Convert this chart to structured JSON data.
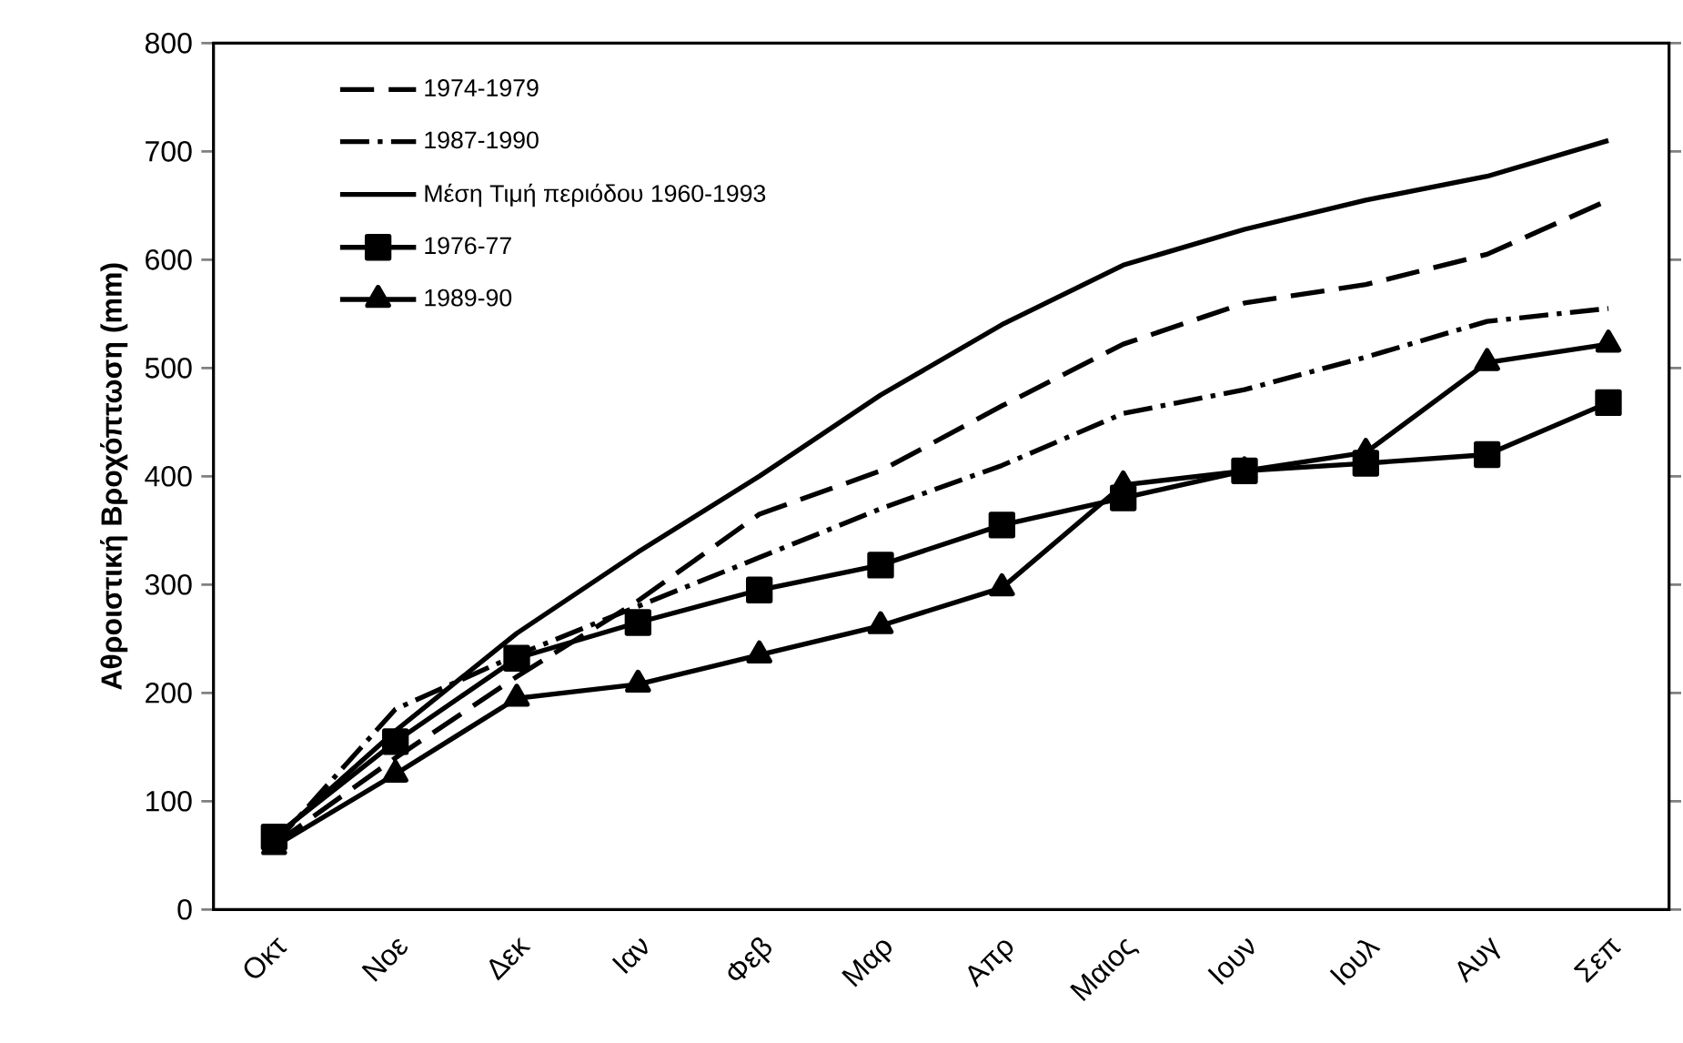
{
  "chart_data": {
    "type": "line",
    "ylabel": "Αθροιστική Βροχόπτωση (mm)",
    "categories": [
      "Οκτ",
      "Νοε",
      "Δεκ",
      "Ιαν",
      "Φεβ",
      "Μαρ",
      "Απρ",
      "Μαιος",
      "Ιουν",
      "Ιουλ",
      "Αυγ",
      "Σεπ"
    ],
    "ylim": [
      0,
      800
    ],
    "yticks": [
      0,
      100,
      200,
      300,
      400,
      500,
      600,
      700,
      800
    ],
    "legend": "top left",
    "grid": false,
    "series": [
      {
        "name": "1974-1979",
        "color": "#000000",
        "line_style": "dashed",
        "marker": "none",
        "values": [
          60,
          140,
          215,
          285,
          365,
          405,
          465,
          522,
          560,
          577,
          605,
          655
        ]
      },
      {
        "name": "1987-1990",
        "color": "#000000",
        "line_style": "dashdot",
        "marker": "none",
        "values": [
          60,
          185,
          235,
          280,
          325,
          370,
          410,
          458,
          480,
          510,
          543,
          555
        ]
      },
      {
        "name": "Μέση Τιμή περιόδου 1960-1993",
        "color": "#000000",
        "line_style": "solid",
        "marker": "none",
        "values": [
          65,
          165,
          255,
          330,
          400,
          475,
          540,
          595,
          628,
          655,
          677,
          710
        ]
      },
      {
        "name": "1976-77",
        "color": "#000000",
        "line_style": "solid",
        "marker": "square",
        "values": [
          67,
          155,
          232,
          265,
          295,
          318,
          355,
          380,
          405,
          412,
          420,
          468
        ]
      },
      {
        "name": "1989-90",
        "color": "#000000",
        "line_style": "solid",
        "marker": "triangle",
        "values": [
          58,
          125,
          195,
          208,
          235,
          262,
          297,
          392,
          405,
          422,
          505,
          522
        ]
      }
    ]
  }
}
